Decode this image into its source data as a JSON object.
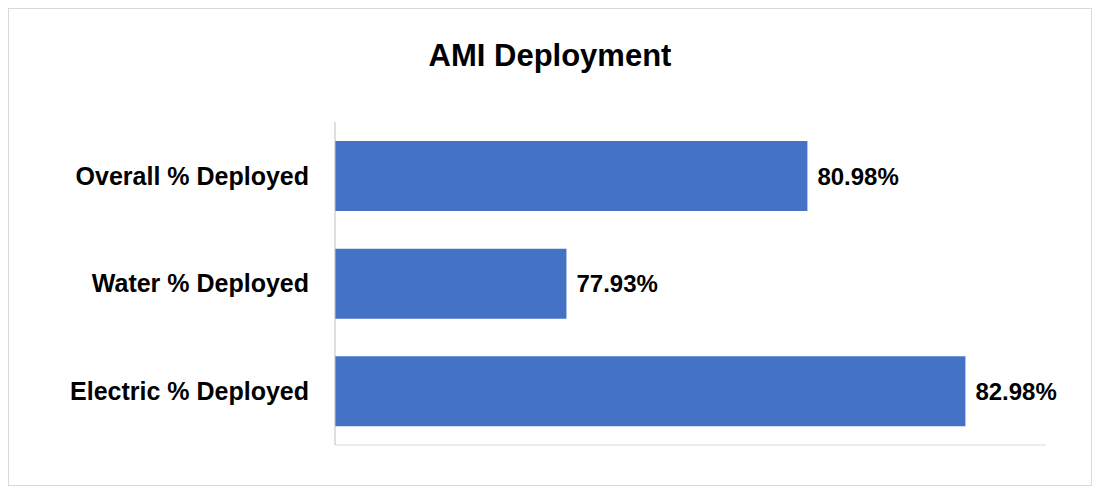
{
  "chart_data": {
    "type": "bar",
    "title": "AMI Deployment",
    "orientation": "horizontal",
    "categories": [
      "Overall % Deployed",
      "Water % Deployed",
      "Electric % Deployed"
    ],
    "values": [
      80.98,
      77.93,
      82.98
    ],
    "value_labels": [
      "80.98%",
      "77.93%",
      "82.98%"
    ],
    "color": "#4472c4",
    "xlim": [
      75,
      84
    ],
    "data_labels": true,
    "tick_labels": "y",
    "grid": false
  }
}
